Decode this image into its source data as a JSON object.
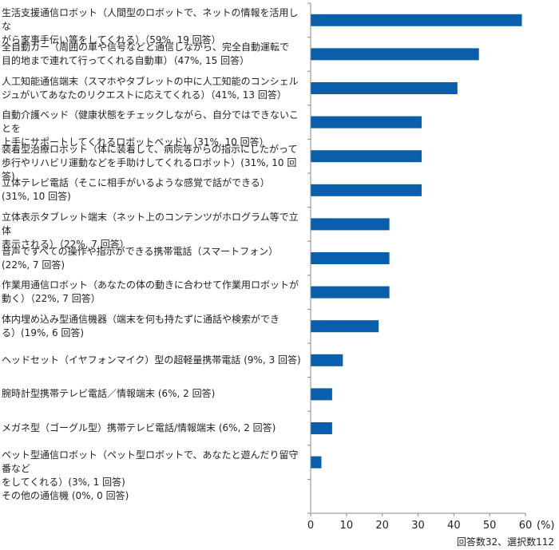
{
  "chart_data": {
    "type": "bar",
    "orientation": "horizontal",
    "categories": [
      "生活支援通信ロボット（人間型のロボットで、ネットの情報を活用しながら家事手伝い等をしてくれる）（59%, 19 回答）",
      "全自動カー（周囲の車や信号などと通信しながら、完全自動運転で目的地まで連れて行ってくれる自動車）（47%, 15 回答）",
      "人工知能通信端末（スマホやタブレットの中に人工知能のコンシェルジュがいてあなたのリクエストに応えてくれる）（41%, 13 回答）",
      "自動介護ベッド（健康状態をチェックしながら、自分ではできないことを上手にサポートしてくれるロボットベッド）（31%, 10 回答）",
      "装着型治療ロボット（体に装着して、病院等からの指示にしたがって歩行やリハビリ運動などを手助けしてくれるロボット）(31%, 10 回答)",
      "立体テレビ電話（そこに相手がいるような感覚で話ができる）(31%, 10 回答)",
      "立体表示タブレット端末（ネット上のコンテンツがホログラム等で立体表示される）（22%, 7 回答）",
      "音声ですべての操作や指示ができる携帯電話（スマートフォン）(22%, 7 回答)",
      "作業用通信ロボット（あなたの体の動きに合わせて作業用ロボットが動く）（22%, 7 回答）",
      "体内埋め込み型通信機器（端末を何も持たずに通話や検索ができる）(19%, 6 回答)",
      "ヘッドセット（イヤフォンマイク）型の超軽量携帯電話 (9%, 3 回答)",
      "腕時計型携帯テレビ電話／情報端末 (6%, 2 回答)",
      "メガネ型（ゴーグル型）携帯テレビ電話/情報端末 (6%, 2 回答)",
      "ペット型通信ロボット（ペット型ロボットで、あなたと遊んだり留守番などをしてくれる）(3%, 1 回答)",
      "その他の通信機 (0%, 0 回答)"
    ],
    "label_lines": [
      [
        "生活支援通信ロボット（人間型のロボットで、ネットの情報を活用しな",
        "がら家事手伝い等をしてくれる）（59%, 19 回答）"
      ],
      [
        "全自動カー（周囲の車や信号などと通信しながら、完全自動運転で",
        "目的地まで連れて行ってくれる自動車）（47%, 15 回答）"
      ],
      [
        "人工知能通信端末（スマホやタブレットの中に人工知能のコンシェル",
        "ジュがいてあなたのリクエストに応えてくれる）（41%, 13 回答）"
      ],
      [
        "自動介護ベッド（健康状態をチェックしながら、自分ではできないことを",
        "上手にサポートしてくれるロボットベッド）（31%, 10 回答）"
      ],
      [
        "装着型治療ロボット（体に装着して、病院等からの指示にしたがって",
        "歩行やリハビリ運動などを手助けしてくれるロボット）(31%, 10 回答)"
      ],
      [
        "立体テレビ電話（そこに相手がいるような感覚で話ができる）",
        "(31%, 10 回答)"
      ],
      [
        "立体表示タブレット端末（ネット上のコンテンツがホログラム等で立体",
        "表示される）（22%, 7 回答）"
      ],
      [
        "音声ですべての操作や指示ができる携帯電話（スマートフォン）",
        "(22%, 7 回答)"
      ],
      [
        "作業用通信ロボット（あなたの体の動きに合わせて作業用ロボットが",
        "動く）（22%, 7 回答）"
      ],
      [
        "体内埋め込み型通信機器（端末を何も持たずに通話や検索ができ",
        "る）(19%, 6 回答)"
      ],
      [
        "ヘッドセット（イヤフォンマイク）型の超軽量携帯電話 (9%, 3 回答)"
      ],
      [
        "腕時計型携帯テレビ電話／情報端末 (6%, 2 回答)"
      ],
      [
        "メガネ型（ゴーグル型）携帯テレビ電話/情報端末 (6%, 2 回答)"
      ],
      [
        "ペット型通信ロボット（ペット型ロボットで、あなたと遊んだり留守番など",
        "をしてくれる）(3%, 1 回答)"
      ],
      [
        "その他の通信機 (0%, 0 回答)"
      ]
    ],
    "values": [
      59,
      47,
      41,
      31,
      31,
      31,
      22,
      22,
      22,
      19,
      9,
      6,
      6,
      3,
      0
    ],
    "xlim": [
      0,
      60
    ],
    "xticks": [
      "0",
      "10",
      "20",
      "30",
      "40",
      "50",
      "60"
    ],
    "unit_label": "(%)",
    "bar_color": "#0a5fad",
    "grid": false,
    "footnote": "回答数32、選択数112"
  }
}
